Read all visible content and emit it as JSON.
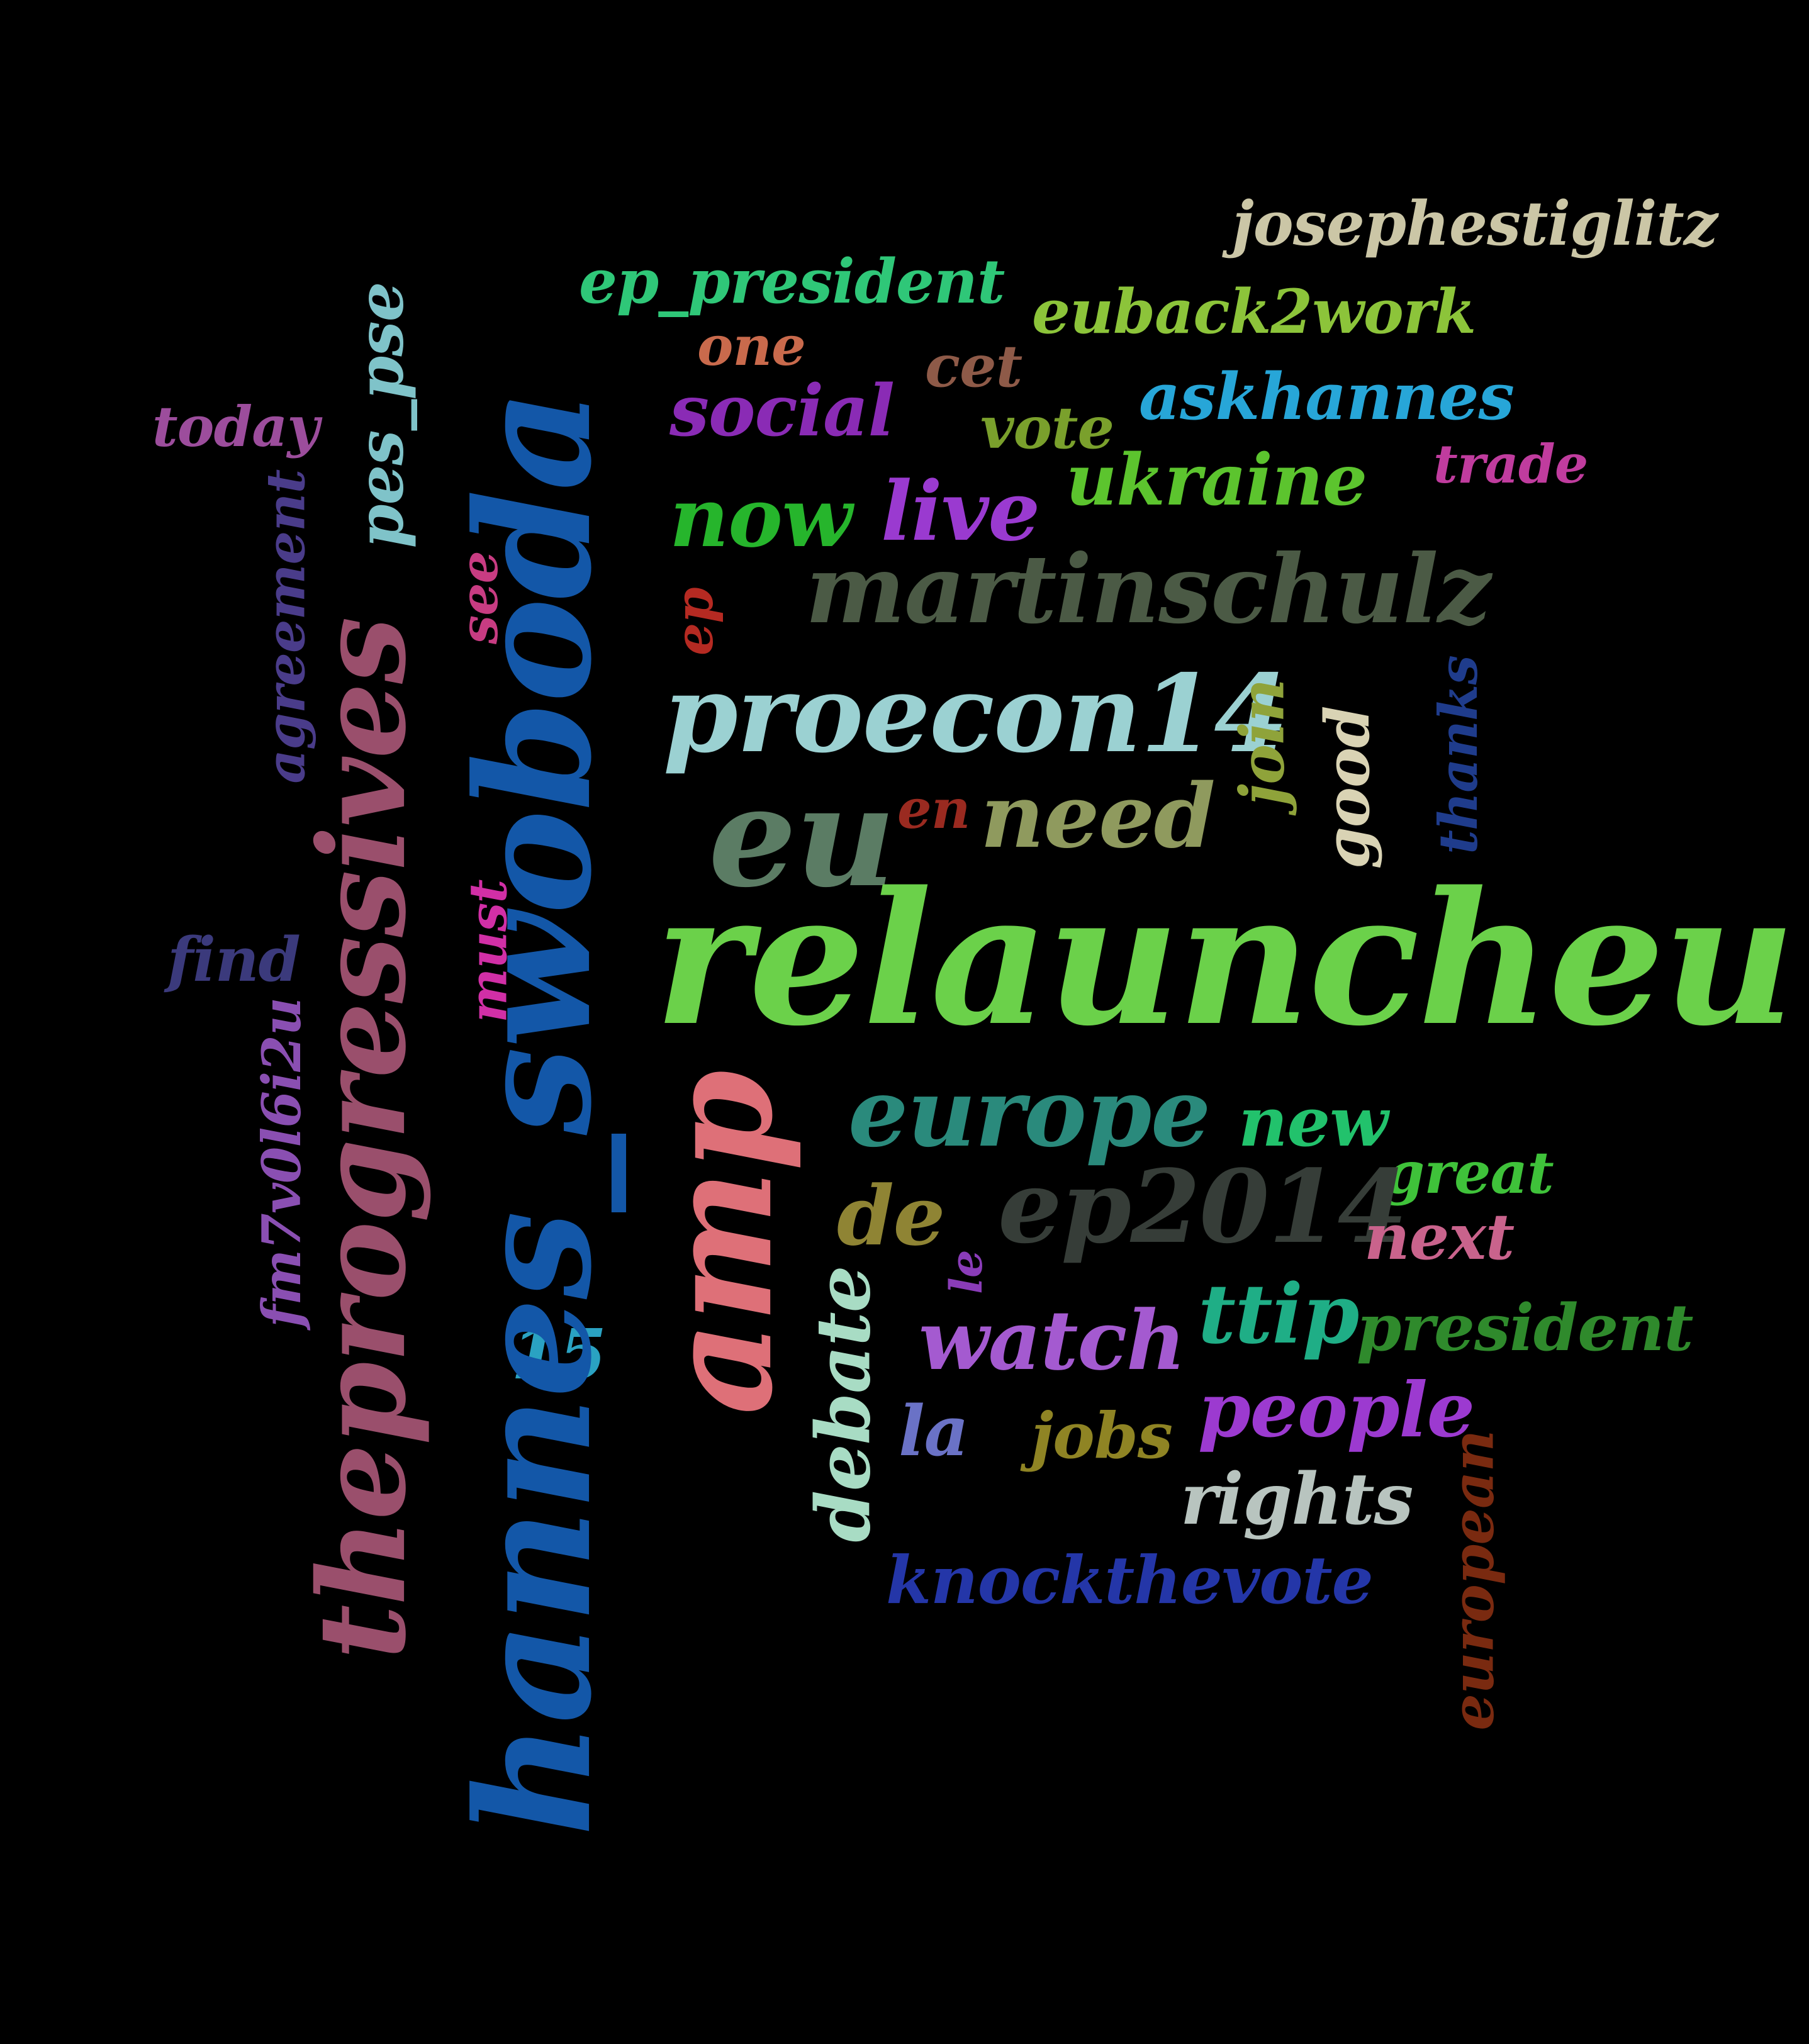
{
  "words": [
    {
      "key": "josephestiglitz",
      "text": "josephestiglitz",
      "color": "#cbc6a6"
    },
    {
      "key": "ep_president",
      "text": "ep_president",
      "color": "#2fc778"
    },
    {
      "key": "euback2work",
      "text": "euback2work",
      "color": "#8cc43a"
    },
    {
      "key": "one",
      "text": "one",
      "color": "#c96a4c"
    },
    {
      "key": "cet",
      "text": "cet",
      "color": "#8e5a48"
    },
    {
      "key": "askhannes",
      "text": "askhannes",
      "color": "#27a6d8"
    },
    {
      "key": "today",
      "text": "today",
      "color": "#9c4d9c"
    },
    {
      "key": "social",
      "text": "social",
      "color": "#8a2bb5"
    },
    {
      "key": "vote",
      "text": "vote",
      "color": "#7aa02c"
    },
    {
      "key": "trade",
      "text": "trade",
      "color": "#c03c9e"
    },
    {
      "key": "ukraine",
      "text": "ukraine",
      "color": "#5cc42e"
    },
    {
      "key": "now",
      "text": "now",
      "color": "#26b52c"
    },
    {
      "key": "live",
      "text": "live",
      "color": "#9a3ad0"
    },
    {
      "key": "martinschulz",
      "text": "martinschulz",
      "color": "#4b5a45"
    },
    {
      "key": "pes_pse",
      "text": "pes_pse",
      "color": "#7fc3c9"
    },
    {
      "key": "agreement",
      "text": "agreement",
      "color": "#4a3c8a"
    },
    {
      "key": "see",
      "text": "see",
      "color": "#c83c82"
    },
    {
      "key": "ep",
      "text": "ep",
      "color": "#b52a22"
    },
    {
      "key": "proecon14",
      "text": "proecon14",
      "color": "#9bd1d2"
    },
    {
      "key": "join",
      "text": "join",
      "color": "#8fa33a"
    },
    {
      "key": "good",
      "text": "good",
      "color": "#d9d3b4"
    },
    {
      "key": "thanks",
      "text": "thanks",
      "color": "#1f3c8c"
    },
    {
      "key": "eu",
      "text": "eu",
      "color": "#5b7c64"
    },
    {
      "key": "en",
      "text": "en",
      "color": "#9a2a20"
    },
    {
      "key": "need",
      "text": "need",
      "color": "#8f9a5e"
    },
    {
      "key": "relauncheu",
      "text": "relauncheu",
      "color": "#6bd14a"
    },
    {
      "key": "theprogressives",
      "text": "theprogressives",
      "color": "#9a4f6c"
    },
    {
      "key": "hannes_swoboda",
      "text": "hannes_swoboda",
      "color": "#1357a8"
    },
    {
      "key": "find",
      "text": "find",
      "color": "#3b3a7c"
    },
    {
      "key": "must",
      "text": "must",
      "color": "#d12fa6"
    },
    {
      "key": "fm7v0l6i2u",
      "text": "fm7v0l6i2u",
      "color": "#8a4fb2"
    },
    {
      "key": "amp",
      "text": "amp",
      "color": "#de7078"
    },
    {
      "key": "europe",
      "text": "europe",
      "color": "#2a8a7c"
    },
    {
      "key": "new",
      "text": "new",
      "color": "#22c26c"
    },
    {
      "key": "great",
      "text": "great",
      "color": "#3fc23a"
    },
    {
      "key": "de",
      "text": "de",
      "color": "#8f8434"
    },
    {
      "key": "ep2014",
      "text": "ep2014",
      "color": "#363d38"
    },
    {
      "key": "next",
      "text": "next",
      "color": "#c9638c"
    },
    {
      "key": "le",
      "text": "le",
      "color": "#8a3cb8"
    },
    {
      "key": "ttip",
      "text": "ttip",
      "color": "#1fae86"
    },
    {
      "key": "president",
      "text": "president",
      "color": "#2f8a2c"
    },
    {
      "key": "15",
      "text": "15",
      "color": "#2aa2c2"
    },
    {
      "key": "watch",
      "text": "watch",
      "color": "#a45ad0"
    },
    {
      "key": "debate",
      "text": "debate",
      "color": "#a8dcc4"
    },
    {
      "key": "people",
      "text": "people",
      "color": "#9c3ad0"
    },
    {
      "key": "la",
      "text": "la",
      "color": "#6a72c6"
    },
    {
      "key": "jobs",
      "text": "jobs",
      "color": "#8f8424"
    },
    {
      "key": "rights",
      "text": "rights",
      "color": "#b8c4bf"
    },
    {
      "key": "european",
      "text": "european",
      "color": "#7a2a10"
    },
    {
      "key": "knockthevote",
      "text": "knockthevote",
      "color": "#2436a8"
    }
  ]
}
